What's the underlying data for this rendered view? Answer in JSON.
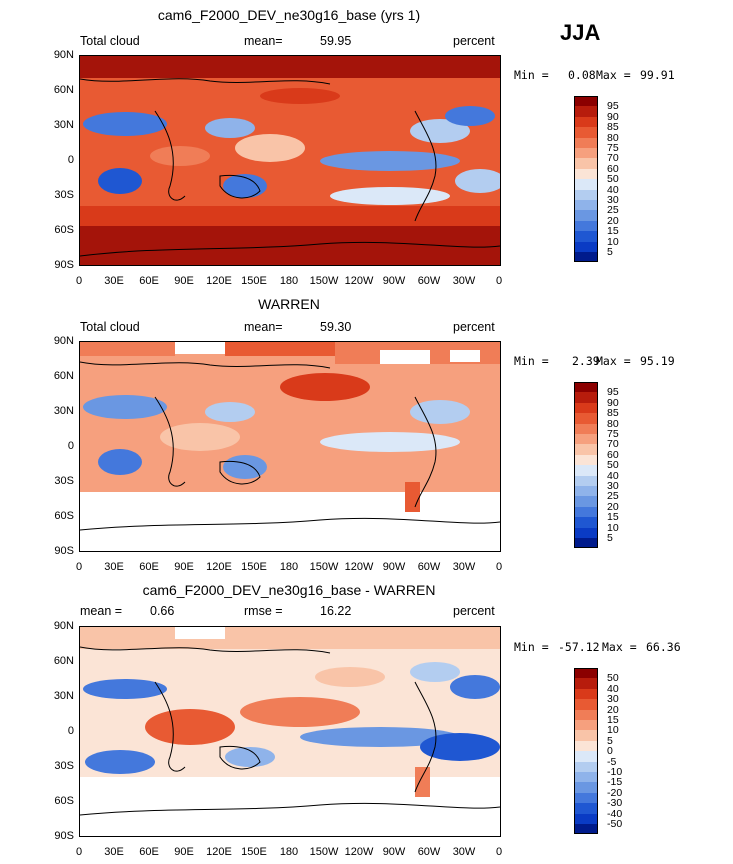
{
  "season": "JJA",
  "panels": [
    {
      "id": "model",
      "title": "cam6_F2000_DEV_ne30g16_base (yrs 1)",
      "left_label": "Total cloud",
      "center_label": "mean=",
      "center_value": "59.95",
      "right_label": "percent",
      "min_label": "Min =",
      "min_value": "0.08",
      "max_label": "Max =",
      "max_value": "99.91"
    },
    {
      "id": "obs",
      "title": "WARREN",
      "left_label": "Total cloud",
      "center_label": "mean=",
      "center_value": "59.30",
      "right_label": "percent",
      "min_label": "Min =",
      "min_value": "2.39",
      "max_label": "Max =",
      "max_value": "95.19"
    },
    {
      "id": "diff",
      "title": "cam6_F2000_DEV_ne30g16_base - WARREN",
      "left_label": "mean =",
      "left_value": "0.66",
      "center_label": "rmse =",
      "center_value": "16.22",
      "right_label": "percent",
      "min_label": "Min =",
      "min_value": "-57.12",
      "max_label": "Max =",
      "max_value": "66.36"
    }
  ],
  "lat_labels": [
    "90N",
    "60N",
    "30N",
    "0",
    "30S",
    "60S",
    "90S"
  ],
  "lon_labels": [
    "0",
    "30E",
    "60E",
    "90E",
    "120E",
    "150E",
    "180",
    "150W",
    "120W",
    "90W",
    "60W",
    "30W",
    "0"
  ],
  "colorbar_abs": {
    "levels": [
      "95",
      "90",
      "85",
      "80",
      "75",
      "70",
      "60",
      "50",
      "40",
      "30",
      "25",
      "20",
      "15",
      "10",
      "5"
    ],
    "colors": [
      "#8b0000",
      "#b71c0c",
      "#d93a1a",
      "#e85a33",
      "#f07d57",
      "#f6a07e",
      "#f9c4a8",
      "#fbe4d6",
      "#dbe8f8",
      "#b3cdf0",
      "#8fb3ea",
      "#6a97e2",
      "#4478dc",
      "#1f57d2",
      "#0a3bc4",
      "#001b8c"
    ]
  },
  "colorbar_diff": {
    "levels": [
      "50",
      "40",
      "30",
      "20",
      "15",
      "10",
      "5",
      "0",
      "-5",
      "-10",
      "-15",
      "-20",
      "-30",
      "-40",
      "-50"
    ],
    "colors": [
      "#8b0000",
      "#b71c0c",
      "#d93a1a",
      "#e85a33",
      "#f07d57",
      "#f6a07e",
      "#f9c4a8",
      "#fbe4d6",
      "#dbe8f8",
      "#b3cdf0",
      "#8fb3ea",
      "#6a97e2",
      "#4478dc",
      "#1f57d2",
      "#0a3bc4",
      "#001b8c"
    ]
  }
}
